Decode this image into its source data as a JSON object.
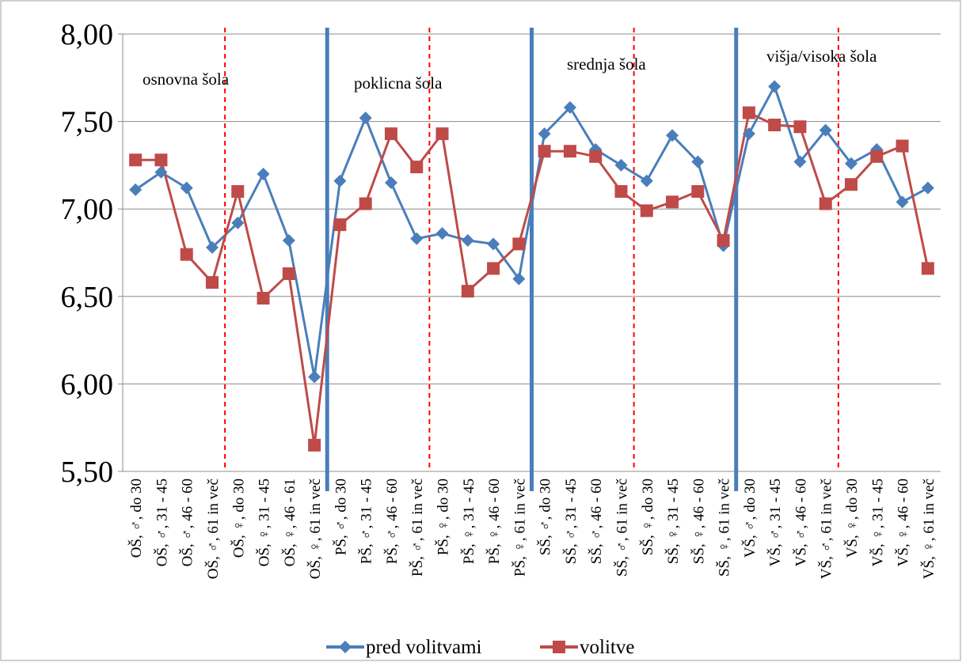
{
  "chart_data": {
    "type": "line",
    "categories": [
      "OŠ, ♂, do 30",
      "OŠ, ♂, 31 - 45",
      "OŠ, ♂, 46 - 60",
      "OŠ, ♂, 61 in več",
      "OŠ, ♀, do 30",
      "OŠ, ♀, 31 - 45",
      "OŠ, ♀, 46 - 61",
      "OŠ, ♀, 61 in več",
      "PŠ, ♂, do 30",
      "PŠ, ♂, 31 - 45",
      "PŠ, ♂, 46 - 60",
      "PŠ, ♂, 61 in več",
      "PŠ, ♀, do 30",
      "PŠ, ♀, 31 - 45",
      "PŠ, ♀, 46 - 60",
      "PŠ, ♀, 61 in več",
      "SŠ, ♂, do 30",
      "SŠ, ♂, 31 - 45",
      "SŠ, ♂, 46 - 60",
      "SŠ, ♂, 61 in več",
      "SŠ, ♀, do 30",
      "SŠ, ♀, 31 - 45",
      "SŠ, ♀, 46 - 60",
      "SŠ, ♀, 61 in več",
      "VŠ, ♂, do 30",
      "VŠ, ♂, 31 - 45",
      "VŠ, ♂, 46 - 60",
      "VŠ, ♂, 61 in več",
      "VŠ, ♀, do 30",
      "VŠ, ♀, 31 - 45",
      "VŠ, ♀, 46 - 60",
      "VŠ, ♀, 61 in več"
    ],
    "series": [
      {
        "name": "pred volitvami",
        "color": "#4a7ebb",
        "marker": "diamond",
        "values": [
          7.11,
          7.21,
          7.12,
          6.78,
          6.92,
          7.2,
          6.82,
          6.04,
          7.16,
          7.52,
          7.15,
          6.83,
          6.86,
          6.82,
          6.8,
          6.6,
          7.43,
          7.58,
          7.34,
          7.25,
          7.16,
          7.42,
          7.27,
          6.79,
          7.43,
          7.7,
          7.27,
          7.45,
          7.26,
          7.34,
          7.04,
          7.12
        ]
      },
      {
        "name": "volitve",
        "color": "#be4b48",
        "marker": "square",
        "values": [
          7.28,
          7.28,
          6.74,
          6.58,
          7.1,
          6.49,
          6.63,
          5.65,
          6.91,
          7.03,
          7.43,
          7.24,
          7.43,
          6.53,
          6.66,
          6.8,
          7.33,
          7.33,
          7.3,
          7.1,
          6.99,
          7.04,
          7.1,
          6.82,
          7.55,
          7.48,
          7.47,
          7.03,
          7.14,
          7.3,
          7.36,
          6.66
        ]
      }
    ],
    "ylim": [
      5.5,
      8.0
    ],
    "yticks": [
      {
        "value": 5.5,
        "label": "5,50"
      },
      {
        "value": 6.0,
        "label": "6,00"
      },
      {
        "value": 6.5,
        "label": "6,50"
      },
      {
        "value": 7.0,
        "label": "7,00"
      },
      {
        "value": 7.5,
        "label": "7,50"
      },
      {
        "value": 8.0,
        "label": "8,00"
      }
    ],
    "grid": true,
    "annotations": [
      "osnovna šola",
      "poklicna šola",
      "srednja šola",
      "višja/visoka šola"
    ],
    "legend": "bottom"
  }
}
